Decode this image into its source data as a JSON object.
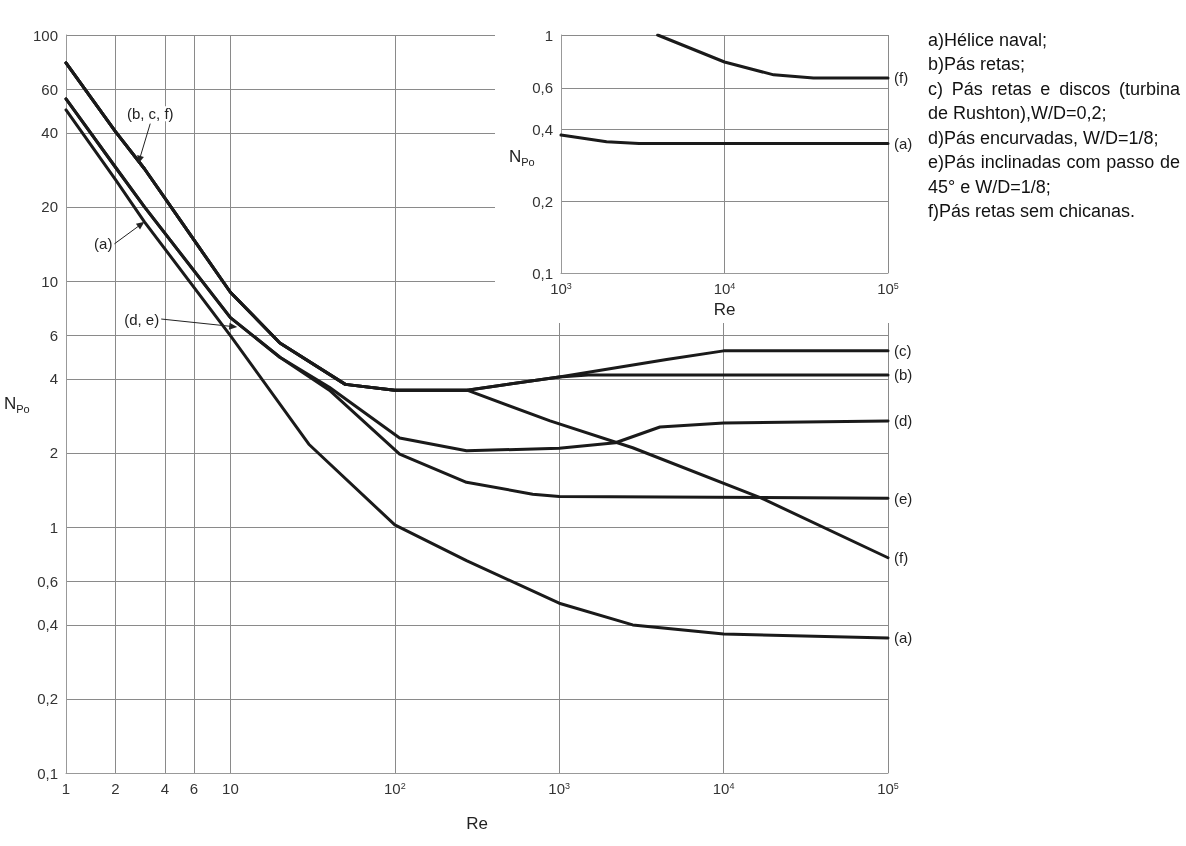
{
  "chart_data": [
    {
      "type": "line",
      "xlabel": "Re",
      "ylabel": "N$_{Po}$",
      "log": "xy",
      "grid": true,
      "marker": "none",
      "line_style": "solid",
      "xlim": [
        1,
        100000
      ],
      "xticks": [
        1,
        2,
        4,
        6,
        10,
        {
          "value": 100,
          "label": "10$^{2}$"
        },
        {
          "value": 1000,
          "label": "10$^{3}$"
        },
        {
          "value": 10000,
          "label": "10$^{4}$"
        },
        {
          "value": 100000,
          "label": "10$^{5}$"
        }
      ],
      "ylim": [
        0.1,
        100
      ],
      "yticks": [
        {
          "value": 0.1,
          "label": "0,1"
        },
        {
          "value": 0.2,
          "label": "0,2"
        },
        {
          "value": 0.4,
          "label": "0,4"
        },
        {
          "value": 0.6,
          "label": "0,6"
        },
        1,
        2,
        4,
        6,
        10,
        20,
        40,
        60,
        100
      ],
      "series": [
        {
          "name": "(c)",
          "color": "#1a1a1a",
          "x": [
            1,
            2,
            3,
            5,
            10,
            20,
            50,
            100,
            275,
            1000,
            4500,
            10000,
            100000
          ],
          "values": [
            77,
            40.5,
            28.6,
            17.5,
            9.0,
            5.6,
            3.8,
            3.6,
            3.6,
            4.07,
            4.8,
            5.2,
            5.2
          ]
        },
        {
          "name": "(b)",
          "color": "#1a1a1a",
          "x": [
            1,
            2,
            3,
            5,
            10,
            20,
            50,
            100,
            275,
            1000,
            1500,
            100000
          ],
          "values": [
            77,
            40.5,
            28.6,
            17.5,
            9.0,
            5.6,
            3.8,
            3.6,
            3.6,
            4.07,
            4.15,
            4.15
          ]
        },
        {
          "name": "(d)",
          "color": "#1a1a1a",
          "x": [
            1,
            2,
            3,
            10,
            20,
            40,
            107,
            273,
            1000,
            2200,
            4100,
            10000,
            100000
          ],
          "values": [
            55,
            29,
            20,
            7.1,
            4.9,
            3.7,
            2.3,
            2.04,
            2.09,
            2.2,
            2.55,
            2.65,
            2.7
          ]
        },
        {
          "name": "(e)",
          "color": "#1a1a1a",
          "x": [
            1,
            2,
            3,
            10,
            20,
            40,
            107,
            273,
            690,
            1000,
            100000
          ],
          "values": [
            55,
            29,
            20,
            7.1,
            4.9,
            3.6,
            1.98,
            1.52,
            1.36,
            1.33,
            1.31
          ]
        },
        {
          "name": "(f)",
          "color": "#1a1a1a",
          "x": [
            1,
            2,
            3,
            5,
            10,
            20,
            50,
            100,
            275,
            880,
            2800,
            17000,
            100000
          ],
          "values": [
            77,
            40.5,
            28.6,
            17.5,
            9.0,
            5.6,
            3.8,
            3.6,
            3.6,
            2.7,
            2.1,
            1.31,
            0.75
          ]
        },
        {
          "name": "(a)",
          "color": "#1a1a1a",
          "x": [
            1,
            2,
            3,
            10,
            30,
            100,
            273,
            1000,
            2800,
            10000,
            100000
          ],
          "values": [
            49.6,
            25.8,
            17.4,
            6.0,
            2.17,
            1.02,
            0.73,
            0.49,
            0.4,
            0.367,
            0.354
          ]
        }
      ],
      "annotations": [
        {
          "text": "(b, c, f)",
          "x": 2.75,
          "y": 30
        },
        {
          "text": "(a)",
          "x": 3,
          "y": 17.4
        },
        {
          "text": "(d, e)",
          "x": 11,
          "y": 6.5
        },
        "a)Hélice naval;",
        "b)Pás retas;",
        "c) Pás retas e discos (turbina de Rushton),W/D=0,2;",
        "d)Pás encurvadas, W/D=1/8;",
        "e)Pás inclinadas com passo de 45° e W/D=1/8;",
        "f)Pás retas sem chicanas."
      ]
    },
    {
      "type": "line",
      "xlabel": "Re",
      "ylabel": "N$_{Po}$",
      "log": "xy",
      "grid": true,
      "marker": "none",
      "line_style": "solid",
      "xlim": [
        1000,
        100000
      ],
      "xticks": [
        {
          "value": 1000,
          "label": "10$^{3}$"
        },
        {
          "value": 10000,
          "label": "10$^{4}$"
        },
        {
          "value": 100000,
          "label": "10$^{5}$"
        }
      ],
      "ylim": [
        0.1,
        1
      ],
      "yticks": [
        {
          "value": 0.1,
          "label": "0,1"
        },
        {
          "value": 0.2,
          "label": "0,2"
        },
        {
          "value": 0.4,
          "label": "0,4"
        },
        {
          "value": 0.6,
          "label": "0,6"
        },
        1
      ],
      "series": [
        {
          "name": "(f)",
          "color": "#1a1a1a",
          "x": [
            3900,
            10000,
            20000,
            35000,
            100000
          ],
          "values": [
            1.0,
            0.77,
            0.68,
            0.66,
            0.66
          ]
        },
        {
          "name": "(a)",
          "color": "#1a1a1a",
          "x": [
            1000,
            1900,
            3000,
            100000
          ],
          "values": [
            0.38,
            0.356,
            0.35,
            0.35
          ]
        }
      ]
    }
  ]
}
